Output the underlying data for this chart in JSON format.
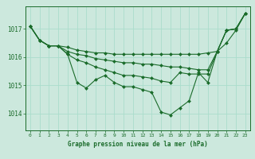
{
  "background_color": "#cce8dd",
  "grid_color": "#aaddcc",
  "line_color": "#1a6b2a",
  "marker_color": "#1a6b2a",
  "xlabel": "Graphe pression niveau de la mer (hPa)",
  "xlim": [
    -0.5,
    23.5
  ],
  "ylim": [
    1013.4,
    1017.8
  ],
  "yticks": [
    1014,
    1015,
    1016,
    1017
  ],
  "xticks": [
    0,
    1,
    2,
    3,
    4,
    5,
    6,
    7,
    8,
    9,
    10,
    11,
    12,
    13,
    14,
    15,
    16,
    17,
    18,
    19,
    20,
    21,
    22,
    23
  ],
  "series": [
    [
      1017.1,
      1016.6,
      1016.4,
      1016.4,
      1016.1,
      1015.1,
      1014.9,
      1015.2,
      1015.35,
      1015.1,
      1014.95,
      1014.95,
      1014.85,
      1014.75,
      1014.05,
      1013.95,
      1014.2,
      1014.45,
      1015.45,
      1015.1,
      1016.2,
      1016.95,
      1017.0,
      1017.55
    ],
    [
      1017.1,
      1016.6,
      1016.4,
      1016.4,
      1016.35,
      1016.25,
      1016.2,
      1016.15,
      1016.15,
      1016.1,
      1016.1,
      1016.1,
      1016.1,
      1016.1,
      1016.1,
      1016.1,
      1016.1,
      1016.1,
      1016.1,
      1016.15,
      1016.2,
      1016.5,
      1016.95,
      1017.55
    ],
    [
      1017.1,
      1016.6,
      1016.4,
      1016.4,
      1016.2,
      1016.1,
      1016.05,
      1015.95,
      1015.9,
      1015.85,
      1015.8,
      1015.8,
      1015.75,
      1015.75,
      1015.7,
      1015.65,
      1015.65,
      1015.6,
      1015.55,
      1015.55,
      1016.2,
      1016.95,
      1017.0,
      1017.55
    ],
    [
      1017.1,
      1016.6,
      1016.4,
      1016.4,
      1016.1,
      1015.9,
      1015.8,
      1015.65,
      1015.55,
      1015.45,
      1015.35,
      1015.35,
      1015.3,
      1015.25,
      1015.15,
      1015.1,
      1015.45,
      1015.4,
      1015.4,
      1015.4,
      1016.2,
      1016.95,
      1017.0,
      1017.55
    ]
  ]
}
